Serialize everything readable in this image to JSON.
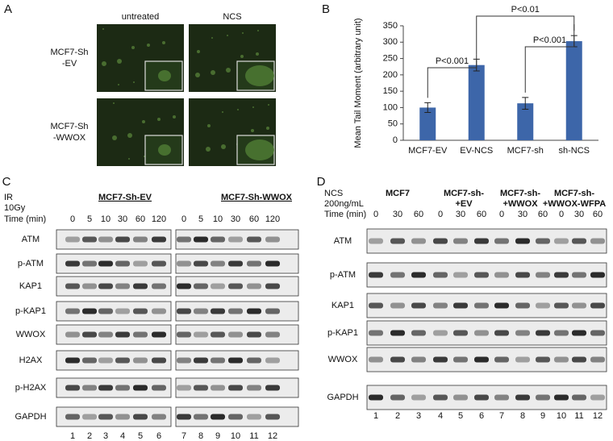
{
  "panel_a": {
    "letter": "A",
    "columns": [
      "untreated",
      "NCS"
    ],
    "rows": [
      [
        "MCF7-Sh",
        "-EV"
      ],
      [
        "MCF7-Sh",
        "-WWOX"
      ]
    ]
  },
  "chart_data": {
    "type": "bar",
    "letter": "B",
    "y_label": "Mean Tail Moment (arbitrary unit)",
    "categories": [
      "MCF7-EV",
      "EV-NCS",
      "MCF7-sh",
      "sh-NCS"
    ],
    "values": [
      100,
      230,
      113,
      303
    ],
    "errors": [
      15,
      18,
      18,
      17
    ],
    "color": "#3d66a9",
    "ylim": [
      0,
      350
    ],
    "yticks": [
      0,
      50,
      100,
      150,
      200,
      250,
      300,
      350
    ],
    "annotations": [
      "P<0.001",
      "P<0.01",
      "P<0.001"
    ]
  },
  "panel_c": {
    "letter": "C",
    "treatment": [
      "IR",
      "10Gy"
    ],
    "time_label": "Time (min)",
    "groups": [
      "MCF7-Sh-EV",
      "MCF7-Sh-WWOX"
    ],
    "times": [
      0,
      5,
      10,
      30,
      60,
      120,
      0,
      5,
      10,
      30,
      60,
      120
    ],
    "rows": [
      "ATM",
      "p-ATM",
      "KAP1",
      "p-KAP1",
      "WWOX",
      "H2AX",
      "p-H2AX",
      "GAPDH"
    ],
    "lanes": [
      1,
      2,
      3,
      4,
      5,
      6,
      7,
      8,
      9,
      10,
      11,
      12
    ]
  },
  "panel_d": {
    "letter": "D",
    "treatment": [
      "NCS",
      "200ng/mL"
    ],
    "time_label": "Time (min)",
    "groups": [
      [
        "MCF7"
      ],
      [
        "MCF7-sh-",
        "+EV"
      ],
      [
        "MCF7-sh-",
        "+WWOX"
      ],
      [
        "MCF7-sh-",
        "+WWOX-WFPA"
      ]
    ],
    "times": [
      0,
      30,
      60,
      0,
      30,
      60,
      0,
      30,
      60,
      0,
      30,
      60
    ],
    "rows": [
      "ATM",
      "p-ATM",
      "KAP1",
      "p-KAP1",
      "WWOX",
      "GAPDH"
    ],
    "lanes": [
      1,
      2,
      3,
      4,
      5,
      6,
      7,
      8,
      9,
      10,
      11,
      12
    ]
  }
}
